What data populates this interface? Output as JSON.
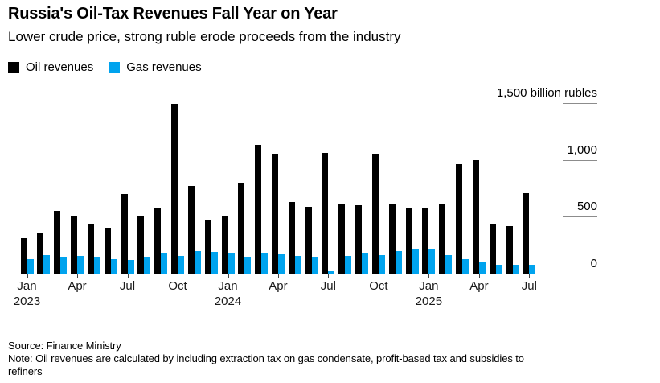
{
  "header": {
    "title": "Russia's Oil-Tax Revenues Fall Year on Year",
    "subtitle": "Lower crude price, strong ruble erode proceeds from the industry"
  },
  "legend": {
    "oil_label": "Oil revenues",
    "gas_label": "Gas revenues"
  },
  "colors": {
    "oil": "#000000",
    "gas": "#00a3ee",
    "axis_line": "#9a9a9a",
    "ytick_line": "#8c8c8c",
    "xtick_mark": "#444444",
    "text": "#000000"
  },
  "chart_data": {
    "type": "bar",
    "title": "Russia's Oil-Tax Revenues Fall Year on Year",
    "subtitle": "Lower crude price, strong ruble erode proceeds from the industry",
    "unit": "billion rubles",
    "grid": false,
    "legend_position": "top-left",
    "ylim": [
      0,
      1500
    ],
    "x": [
      "Jan 2023",
      "Feb 2023",
      "Mar 2023",
      "Apr 2023",
      "May 2023",
      "Jun 2023",
      "Jul 2023",
      "Aug 2023",
      "Sep 2023",
      "Oct 2023",
      "Nov 2023",
      "Dec 2023",
      "Jan 2024",
      "Feb 2024",
      "Mar 2024",
      "Apr 2024",
      "May 2024",
      "Jun 2024",
      "Jul 2024",
      "Aug 2024",
      "Sep 2024",
      "Oct 2024",
      "Nov 2024",
      "Dec 2024",
      "Jan 2025",
      "Feb 2025",
      "Mar 2025",
      "Apr 2025",
      "May 2025",
      "Jun 2025",
      "Jul 2025"
    ],
    "series": [
      {
        "name": "Oil revenues",
        "color": "#000000",
        "values": [
          310,
          365,
          555,
          500,
          430,
          405,
          700,
          510,
          580,
          1495,
          775,
          470,
          510,
          795,
          1135,
          1055,
          630,
          590,
          1065,
          620,
          600,
          1055,
          610,
          575,
          575,
          615,
          960,
          1000,
          435,
          415,
          710
        ]
      },
      {
        "name": "Gas revenues",
        "color": "#00a3ee",
        "values": [
          125,
          165,
          140,
          155,
          150,
          125,
          120,
          140,
          175,
          155,
          200,
          190,
          175,
          150,
          180,
          170,
          155,
          150,
          25,
          155,
          180,
          165,
          200,
          215,
          215,
          160,
          125,
          100,
          80,
          80,
          75
        ]
      }
    ],
    "yticks": [
      {
        "value": 1500,
        "label": "1,500 billion rubles"
      },
      {
        "value": 1000,
        "label": "1,000"
      },
      {
        "value": 500,
        "label": "500"
      },
      {
        "value": 0,
        "label": "0"
      }
    ],
    "xticks": [
      {
        "index": 0,
        "label": "Jan",
        "year": "2023"
      },
      {
        "index": 3,
        "label": "Apr"
      },
      {
        "index": 6,
        "label": "Jul"
      },
      {
        "index": 9,
        "label": "Oct"
      },
      {
        "index": 12,
        "label": "Jan",
        "year": "2024"
      },
      {
        "index": 15,
        "label": "Apr"
      },
      {
        "index": 18,
        "label": "Jul"
      },
      {
        "index": 21,
        "label": "Oct"
      },
      {
        "index": 24,
        "label": "Jan",
        "year": "2025"
      },
      {
        "index": 27,
        "label": "Apr"
      },
      {
        "index": 30,
        "label": "Jul"
      }
    ]
  },
  "footer": {
    "source": "Source: Finance Ministry",
    "note": "Note: Oil revenues are calculated by including extraction tax on gas condensate, profit-based tax and subsidies to refiners"
  }
}
